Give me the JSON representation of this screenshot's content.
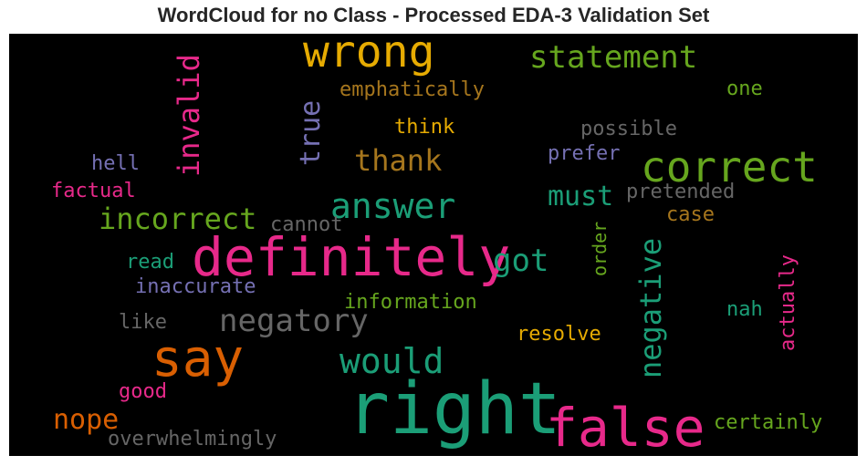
{
  "chart_data": {
    "type": "wordcloud",
    "title": "WordCloud for no Class - Processed EDA-3 Validation Set",
    "background": "#000000",
    "colors": {
      "green": "#66a61e",
      "teal": "#1b9e77",
      "pink": "#e7298a",
      "orange": "#d95f02",
      "gold": "#e6ab02",
      "brown": "#a6761d",
      "purple": "#7570b3",
      "gray": "#666666"
    },
    "words": [
      {
        "text": "right",
        "weight": 1.0,
        "color": "teal"
      },
      {
        "text": "false",
        "weight": 0.9,
        "color": "pink"
      },
      {
        "text": "definitely",
        "weight": 0.85,
        "color": "pink"
      },
      {
        "text": "say",
        "weight": 0.8,
        "color": "orange"
      },
      {
        "text": "wrong",
        "weight": 0.75,
        "color": "gold"
      },
      {
        "text": "correct",
        "weight": 0.7,
        "color": "green"
      },
      {
        "text": "answer",
        "weight": 0.55,
        "color": "teal"
      },
      {
        "text": "negatory",
        "weight": 0.52,
        "color": "gray"
      },
      {
        "text": "would",
        "weight": 0.52,
        "color": "teal"
      },
      {
        "text": "negative",
        "weight": 0.5,
        "color": "teal"
      },
      {
        "text": "statement",
        "weight": 0.5,
        "color": "green"
      },
      {
        "text": "incorrect",
        "weight": 0.48,
        "color": "green"
      },
      {
        "text": "invalid",
        "weight": 0.48,
        "color": "pink"
      },
      {
        "text": "thank",
        "weight": 0.48,
        "color": "brown"
      },
      {
        "text": "true",
        "weight": 0.46,
        "color": "purple"
      },
      {
        "text": "got",
        "weight": 0.46,
        "color": "teal"
      },
      {
        "text": "nope",
        "weight": 0.45,
        "color": "orange"
      },
      {
        "text": "must",
        "weight": 0.44,
        "color": "teal"
      },
      {
        "text": "emphatically",
        "weight": 0.32,
        "color": "brown"
      },
      {
        "text": "possible",
        "weight": 0.32,
        "color": "gray"
      },
      {
        "text": "pretended",
        "weight": 0.32,
        "color": "gray"
      },
      {
        "text": "information",
        "weight": 0.32,
        "color": "green"
      },
      {
        "text": "overwhelmingly",
        "weight": 0.32,
        "color": "gray"
      },
      {
        "text": "certainly",
        "weight": 0.32,
        "color": "green"
      },
      {
        "text": "actually",
        "weight": 0.32,
        "color": "pink"
      },
      {
        "text": "inaccurate",
        "weight": 0.32,
        "color": "purple"
      },
      {
        "text": "factual",
        "weight": 0.3,
        "color": "pink"
      },
      {
        "text": "think",
        "weight": 0.3,
        "color": "gold"
      },
      {
        "text": "prefer",
        "weight": 0.3,
        "color": "purple"
      },
      {
        "text": "hell",
        "weight": 0.3,
        "color": "purple"
      },
      {
        "text": "cannot",
        "weight": 0.3,
        "color": "gray"
      },
      {
        "text": "case",
        "weight": 0.3,
        "color": "brown"
      },
      {
        "text": "read",
        "weight": 0.3,
        "color": "teal"
      },
      {
        "text": "order",
        "weight": 0.28,
        "color": "green"
      },
      {
        "text": "resolve",
        "weight": 0.3,
        "color": "gold"
      },
      {
        "text": "nah",
        "weight": 0.3,
        "color": "teal"
      },
      {
        "text": "like",
        "weight": 0.3,
        "color": "gray"
      },
      {
        "text": "good",
        "weight": 0.3,
        "color": "pink"
      },
      {
        "text": "one",
        "weight": 0.3,
        "color": "green"
      }
    ]
  }
}
